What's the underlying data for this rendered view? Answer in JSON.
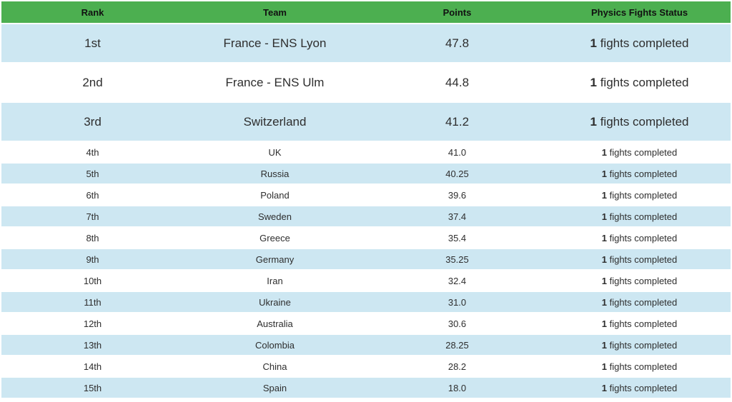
{
  "chart_data": {
    "type": "table",
    "title": "",
    "columns": [
      "Rank",
      "Team",
      "Points",
      "Physics Fights Status"
    ],
    "rows": [
      {
        "rank": "1st",
        "team": "France - ENS Lyon",
        "points": "47.8",
        "fights_count": "1",
        "fights_label": "fights completed"
      },
      {
        "rank": "2nd",
        "team": "France - ENS Ulm",
        "points": "44.8",
        "fights_count": "1",
        "fights_label": "fights completed"
      },
      {
        "rank": "3rd",
        "team": "Switzerland",
        "points": "41.2",
        "fights_count": "1",
        "fights_label": "fights completed"
      },
      {
        "rank": "4th",
        "team": "UK",
        "points": "41.0",
        "fights_count": "1",
        "fights_label": "fights completed"
      },
      {
        "rank": "5th",
        "team": "Russia",
        "points": "40.25",
        "fights_count": "1",
        "fights_label": "fights completed"
      },
      {
        "rank": "6th",
        "team": "Poland",
        "points": "39.6",
        "fights_count": "1",
        "fights_label": "fights completed"
      },
      {
        "rank": "7th",
        "team": "Sweden",
        "points": "37.4",
        "fights_count": "1",
        "fights_label": "fights completed"
      },
      {
        "rank": "8th",
        "team": "Greece",
        "points": "35.4",
        "fights_count": "1",
        "fights_label": "fights completed"
      },
      {
        "rank": "9th",
        "team": "Germany",
        "points": "35.25",
        "fights_count": "1",
        "fights_label": "fights completed"
      },
      {
        "rank": "10th",
        "team": "Iran",
        "points": "32.4",
        "fights_count": "1",
        "fights_label": "fights completed"
      },
      {
        "rank": "11th",
        "team": "Ukraine",
        "points": "31.0",
        "fights_count": "1",
        "fights_label": "fights completed"
      },
      {
        "rank": "12th",
        "team": "Australia",
        "points": "30.6",
        "fights_count": "1",
        "fights_label": "fights completed"
      },
      {
        "rank": "13th",
        "team": "Colombia",
        "points": "28.25",
        "fights_count": "1",
        "fights_label": "fights completed"
      },
      {
        "rank": "14th",
        "team": "China",
        "points": "28.2",
        "fights_count": "1",
        "fights_label": "fights completed"
      },
      {
        "rank": "15th",
        "team": "Spain",
        "points": "18.0",
        "fights_count": "1",
        "fights_label": "fights completed"
      }
    ],
    "layout": {
      "top_rows_emphasized": 3,
      "row_striping": "odd ranks light-blue, even ranks white",
      "grid": false
    }
  },
  "colors": {
    "header_bg": "#4caf50",
    "header_text": "#111111",
    "row_alt_bg": "#cde7f2",
    "row_bg": "#ffffff",
    "cell_text": "#2e2e2e"
  }
}
